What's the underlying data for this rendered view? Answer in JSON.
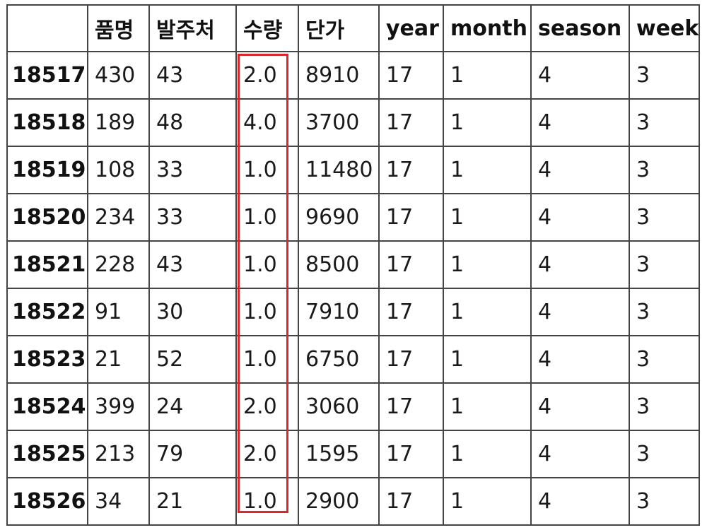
{
  "table": {
    "columns": [
      "",
      "품명",
      "발주처",
      "수량",
      "단가",
      "year",
      "month",
      "season",
      "week"
    ],
    "rows": [
      {
        "index": "18517",
        "cells": [
          "430",
          "43",
          "2.0",
          "8910",
          "17",
          "1",
          "4",
          "3"
        ]
      },
      {
        "index": "18518",
        "cells": [
          "189",
          "48",
          "4.0",
          "3700",
          "17",
          "1",
          "4",
          "3"
        ]
      },
      {
        "index": "18519",
        "cells": [
          "108",
          "33",
          "1.0",
          "11480",
          "17",
          "1",
          "4",
          "3"
        ]
      },
      {
        "index": "18520",
        "cells": [
          "234",
          "33",
          "1.0",
          "9690",
          "17",
          "1",
          "4",
          "3"
        ]
      },
      {
        "index": "18521",
        "cells": [
          "228",
          "43",
          "1.0",
          "8500",
          "17",
          "1",
          "4",
          "3"
        ]
      },
      {
        "index": "18522",
        "cells": [
          "91",
          "30",
          "1.0",
          "7910",
          "17",
          "1",
          "4",
          "3"
        ]
      },
      {
        "index": "18523",
        "cells": [
          "21",
          "52",
          "1.0",
          "6750",
          "17",
          "1",
          "4",
          "3"
        ]
      },
      {
        "index": "18524",
        "cells": [
          "399",
          "24",
          "2.0",
          "3060",
          "17",
          "1",
          "4",
          "3"
        ]
      },
      {
        "index": "18525",
        "cells": [
          "213",
          "79",
          "2.0",
          "1595",
          "17",
          "1",
          "4",
          "3"
        ]
      },
      {
        "index": "18526",
        "cells": [
          "34",
          "21",
          "1.0",
          "2900",
          "17",
          "1",
          "4",
          "3"
        ]
      }
    ]
  },
  "highlight": {
    "column": "수량",
    "color": "#d9262c"
  }
}
